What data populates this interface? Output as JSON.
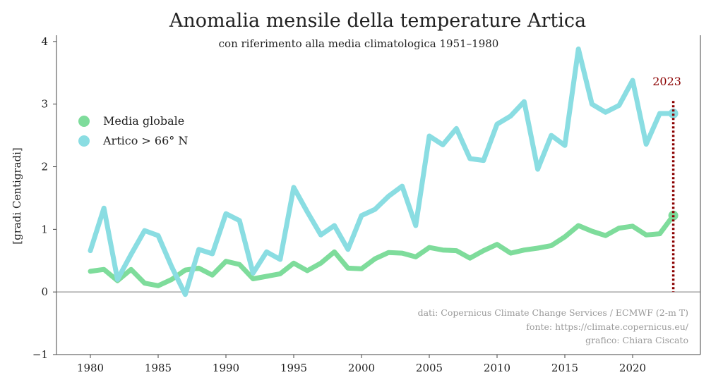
{
  "chart_data": {
    "type": "line",
    "title": "Anomalia mensile della temperature Artica",
    "subtitle": "con riferimento alla media climatologica 1951–1980",
    "xlabel": "",
    "ylabel": "[gradi Centigradi]",
    "xlim": [
      1977.5,
      2025.0
    ],
    "ylim": [
      -1,
      4.1
    ],
    "x_ticks": [
      1980,
      1985,
      1990,
      1995,
      2000,
      2005,
      2010,
      2015,
      2020
    ],
    "y_ticks": [
      -1,
      0,
      1,
      2,
      3,
      4
    ],
    "x": [
      1980,
      1981,
      1982,
      1983,
      1984,
      1985,
      1986,
      1987,
      1988,
      1989,
      1990,
      1991,
      1992,
      1993,
      1994,
      1995,
      1996,
      1997,
      1998,
      1999,
      2000,
      2001,
      2002,
      2003,
      2004,
      2005,
      2006,
      2007,
      2008,
      2009,
      2010,
      2011,
      2012,
      2013,
      2014,
      2015,
      2016,
      2017,
      2018,
      2019,
      2020,
      2021,
      2022,
      2023
    ],
    "series": [
      {
        "name": "Media globale",
        "color": "#7edc9b",
        "values": [
          0.33,
          0.36,
          0.18,
          0.36,
          0.14,
          0.1,
          0.2,
          0.35,
          0.38,
          0.27,
          0.49,
          0.44,
          0.21,
          0.25,
          0.29,
          0.46,
          0.34,
          0.46,
          0.64,
          0.38,
          0.37,
          0.53,
          0.63,
          0.62,
          0.56,
          0.71,
          0.67,
          0.66,
          0.54,
          0.66,
          0.76,
          0.62,
          0.67,
          0.7,
          0.74,
          0.88,
          1.06,
          0.97,
          0.9,
          1.02,
          1.05,
          0.91,
          0.93,
          1.22
        ]
      },
      {
        "name": "Artico > 66°  N",
        "color": "#8adde2",
        "values": [
          0.66,
          1.34,
          0.2,
          0.6,
          0.98,
          0.9,
          0.4,
          -0.04,
          0.68,
          0.61,
          1.25,
          1.14,
          0.3,
          0.64,
          0.52,
          1.67,
          1.28,
          0.91,
          1.06,
          0.68,
          1.22,
          1.32,
          1.53,
          1.69,
          1.06,
          2.49,
          2.35,
          2.61,
          2.13,
          2.1,
          2.68,
          2.81,
          3.04,
          1.96,
          2.5,
          2.34,
          3.88,
          3.0,
          2.87,
          2.98,
          3.38,
          2.36,
          2.85,
          2.85
        ]
      }
    ],
    "legend": {
      "position": "upper-left"
    },
    "annotation": {
      "text": "2023",
      "x": 2023,
      "color": "#8b0000"
    },
    "reference_line": {
      "y": 0
    },
    "credits": [
      "dati: Copernicus Climate Change Services / ECMWF (2-m T)",
      "fonte: https://climate.copernicus.eu/",
      "grafico: Chiara Ciscato"
    ],
    "grid": false
  }
}
